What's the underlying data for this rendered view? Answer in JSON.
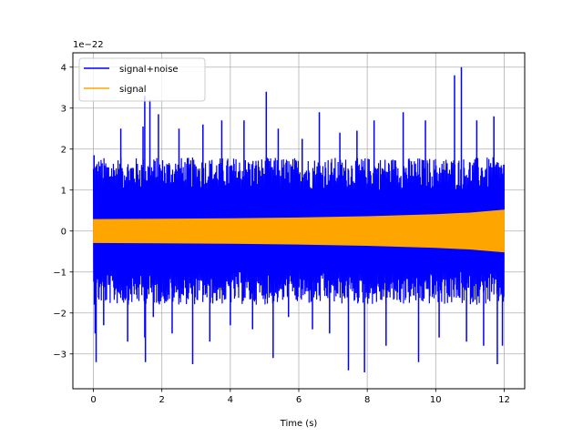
{
  "chart_data": {
    "type": "line",
    "title": "",
    "xlabel": "Time (s)",
    "ylabel": "",
    "y_scale_label": "1e−22",
    "xlim": [
      -0.6,
      12.6
    ],
    "ylim": [
      -3.85,
      4.35
    ],
    "x_ticks": [
      0,
      2,
      4,
      6,
      8,
      10,
      12
    ],
    "x_tick_labels": [
      "0",
      "2",
      "4",
      "6",
      "8",
      "10",
      "12"
    ],
    "y_ticks": [
      -3,
      -2,
      -1,
      0,
      1,
      2,
      3,
      4
    ],
    "y_tick_labels": [
      "−3",
      "−2",
      "−1",
      "0",
      "1",
      "2",
      "3",
      "4"
    ],
    "grid": true,
    "legend_position": "top-left",
    "series": [
      {
        "name": "signal+noise",
        "color": "#0000ff",
        "kind": "dense-oscillation",
        "x_range": [
          0,
          12
        ],
        "typical_envelope": 1.8,
        "spikes": [
          {
            "x": 0.02,
            "y": 1.85
          },
          {
            "x": 0.05,
            "y": -2.5
          },
          {
            "x": 0.08,
            "y": -3.2
          },
          {
            "x": 0.3,
            "y": -2.3
          },
          {
            "x": 0.8,
            "y": 2.5
          },
          {
            "x": 1.0,
            "y": -2.7
          },
          {
            "x": 1.5,
            "y": 3.3
          },
          {
            "x": 1.5,
            "y": -2.6
          },
          {
            "x": 1.45,
            "y": 2.55
          },
          {
            "x": 1.52,
            "y": -3.2
          },
          {
            "x": 1.65,
            "y": 3.2
          },
          {
            "x": 1.75,
            "y": -2.1
          },
          {
            "x": 1.9,
            "y": 2.85
          },
          {
            "x": 2.3,
            "y": -2.5
          },
          {
            "x": 2.5,
            "y": 2.5
          },
          {
            "x": 2.9,
            "y": -3.25
          },
          {
            "x": 3.2,
            "y": 2.6
          },
          {
            "x": 3.4,
            "y": -2.7
          },
          {
            "x": 3.75,
            "y": 2.7
          },
          {
            "x": 4.0,
            "y": -2.3
          },
          {
            "x": 4.4,
            "y": 2.7
          },
          {
            "x": 4.65,
            "y": -2.4
          },
          {
            "x": 5.05,
            "y": 3.4
          },
          {
            "x": 5.25,
            "y": -3.1
          },
          {
            "x": 5.4,
            "y": 2.5
          },
          {
            "x": 5.7,
            "y": -2.1
          },
          {
            "x": 6.1,
            "y": 2.25
          },
          {
            "x": 6.4,
            "y": -2.4
          },
          {
            "x": 6.6,
            "y": 2.9
          },
          {
            "x": 6.9,
            "y": -2.5
          },
          {
            "x": 7.2,
            "y": 2.4
          },
          {
            "x": 7.45,
            "y": -3.4
          },
          {
            "x": 7.7,
            "y": 2.45
          },
          {
            "x": 7.92,
            "y": -3.45
          },
          {
            "x": 8.2,
            "y": 2.7
          },
          {
            "x": 8.55,
            "y": -2.8
          },
          {
            "x": 9.05,
            "y": 2.9
          },
          {
            "x": 9.5,
            "y": -3.2
          },
          {
            "x": 9.7,
            "y": 2.7
          },
          {
            "x": 10.1,
            "y": -2.6
          },
          {
            "x": 10.55,
            "y": 3.8
          },
          {
            "x": 10.75,
            "y": 4.0
          },
          {
            "x": 10.9,
            "y": -2.7
          },
          {
            "x": 11.2,
            "y": 2.7
          },
          {
            "x": 11.4,
            "y": -2.8
          },
          {
            "x": 11.7,
            "y": 2.8
          },
          {
            "x": 11.8,
            "y": -3.25
          },
          {
            "x": 11.95,
            "y": -2.8
          }
        ]
      },
      {
        "name": "signal",
        "color": "#ffa500",
        "kind": "chirp-envelope",
        "x_range": [
          0,
          12
        ],
        "amplitude_points": [
          {
            "x": 0,
            "amp": 0.28
          },
          {
            "x": 2,
            "amp": 0.29
          },
          {
            "x": 4,
            "amp": 0.3
          },
          {
            "x": 6,
            "amp": 0.32
          },
          {
            "x": 8,
            "amp": 0.35
          },
          {
            "x": 10,
            "amp": 0.4
          },
          {
            "x": 11,
            "amp": 0.44
          },
          {
            "x": 12,
            "amp": 0.51
          }
        ]
      }
    ]
  }
}
